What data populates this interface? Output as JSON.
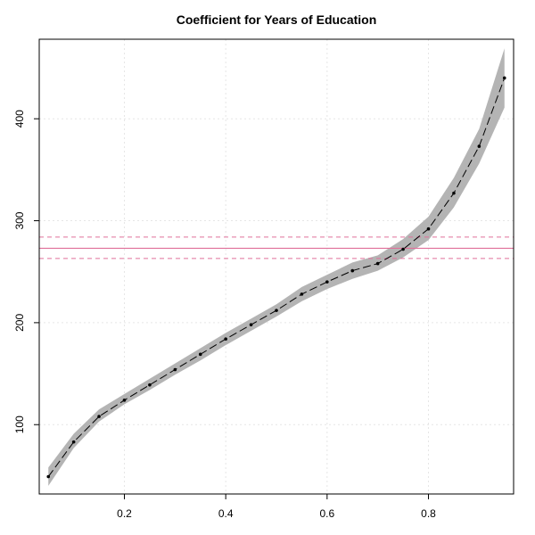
{
  "chart_data": {
    "type": "line",
    "title": "Coefficient for Years of Education",
    "xlabel": "",
    "ylabel": "",
    "xlim": [
      0.032,
      0.968
    ],
    "ylim": [
      32,
      478
    ],
    "x_ticks": [
      0.2,
      0.4,
      0.6,
      0.8
    ],
    "y_ticks": [
      100,
      200,
      300,
      400
    ],
    "grid": true,
    "series": [
      {
        "x": [
          0.05,
          0.1,
          0.15,
          0.2,
          0.25,
          0.3,
          0.35,
          0.4,
          0.45,
          0.5,
          0.55,
          0.6,
          0.65,
          0.7,
          0.75,
          0.8,
          0.85,
          0.9,
          0.95
        ],
        "y": [
          49,
          83,
          108,
          124,
          139,
          154,
          169,
          184,
          198,
          212,
          228,
          240,
          251,
          258,
          272,
          292,
          327,
          373,
          440
        ],
        "lower": [
          40,
          77,
          103,
          120,
          134,
          149,
          163,
          178,
          192,
          206,
          221,
          233,
          243,
          251,
          264,
          281,
          313,
          356,
          411
        ],
        "upper": [
          58,
          91,
          115,
          130,
          145,
          160,
          175,
          190,
          204,
          218,
          235,
          247,
          259,
          266,
          282,
          304,
          342,
          390,
          469
        ]
      }
    ],
    "reference": {
      "estimate": 273,
      "lower": 263,
      "upper": 284,
      "color": "#e0709a"
    }
  }
}
